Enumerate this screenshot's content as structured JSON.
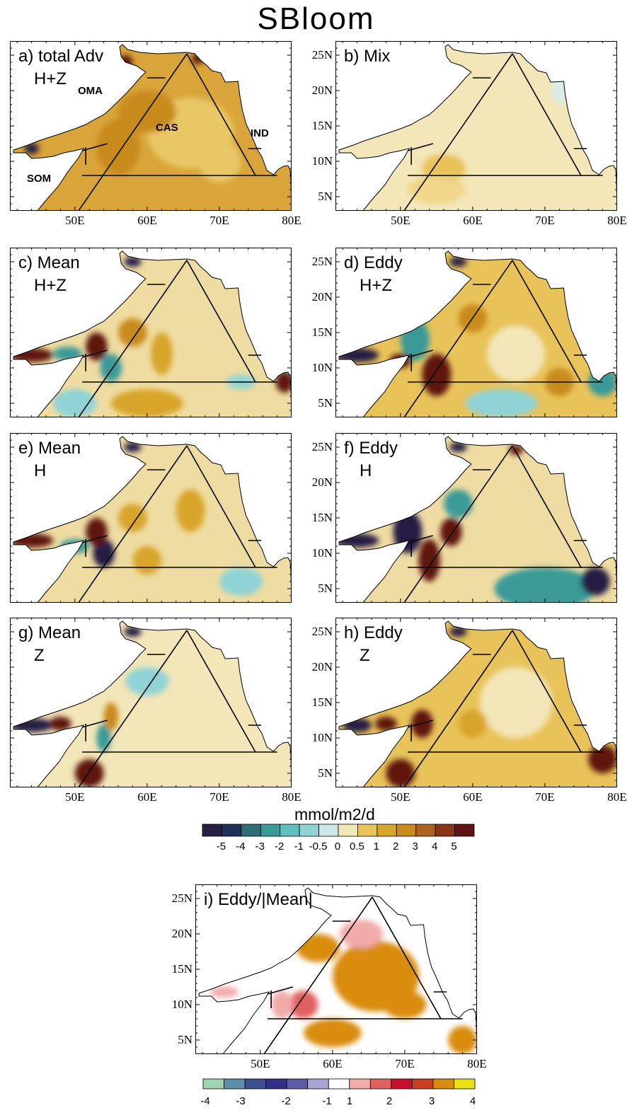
{
  "title": "SBloom",
  "panels": [
    {
      "label_line1": "a) total Adv",
      "label_line2": "H+Z"
    },
    {
      "label_line1": "b) Mix",
      "label_line2": ""
    },
    {
      "label_line1": "c) Mean",
      "label_line2": "H+Z"
    },
    {
      "label_line1": "d) Eddy",
      "label_line2": "H+Z"
    },
    {
      "label_line1": "e) Mean",
      "label_line2": "H"
    },
    {
      "label_line1": "f) Eddy",
      "label_line2": "H"
    },
    {
      "label_line1": "g) Mean",
      "label_line2": "Z"
    },
    {
      "label_line1": "h) Eddy",
      "label_line2": "Z"
    },
    {
      "label_line1": "i) Eddy/|Mean|",
      "label_line2": ""
    }
  ],
  "regions": {
    "oma": "OMA",
    "cas": "CAS",
    "ind": "IND",
    "som": "SOM"
  },
  "lat_ticks": [
    "25N",
    "20N",
    "15N",
    "10N",
    "5N"
  ],
  "lon_ticks": [
    "50E",
    "60E",
    "70E",
    "80E"
  ],
  "colorbar1": {
    "title": "mmol/m2/d",
    "ticks": [
      "-5",
      "-4",
      "-3",
      "-2",
      "-1",
      "-0.5",
      "0",
      "0.5",
      "1",
      "2",
      "3",
      "4",
      "5"
    ],
    "colors": [
      "#281f44",
      "#1e3058",
      "#2f6e73",
      "#3a9a98",
      "#5fbfbf",
      "#8fd3d6",
      "#cde8e8",
      "#f3e6b8",
      "#e8c35a",
      "#d8a52c",
      "#c98a1e",
      "#ad6220",
      "#8a3518",
      "#5e1410"
    ]
  },
  "colorbar2": {
    "ticks": [
      "-4",
      "-3",
      "-2",
      "-1",
      "1",
      "2",
      "3",
      "4"
    ],
    "colors": [
      "#9fd4b0",
      "#5d8ea8",
      "#3d4f8f",
      "#30308a",
      "#5f5aa8",
      "#a9a5d3",
      "#ffffff",
      "#f2aaaa",
      "#e06060",
      "#c8102e",
      "#c84020",
      "#d98c10",
      "#e8e010"
    ]
  },
  "colors": {
    "land": "#ffffff",
    "ocean_base": "#d9a53a",
    "pale": "#f3e6b8",
    "coast": "#000000"
  }
}
